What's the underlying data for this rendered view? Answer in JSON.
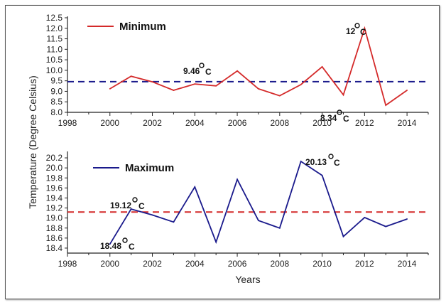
{
  "figure": {
    "ylabel": "Temperature (Degree Celsius)",
    "xlabel": "Years"
  },
  "chart_data": [
    {
      "type": "line",
      "legend": "Minimum",
      "line_color": "#d42a2a",
      "ref_color": "#1a1a8c",
      "x": [
        2000,
        2001,
        2002,
        2003,
        2004,
        2005,
        2006,
        2007,
        2008,
        2009,
        2010,
        2011,
        2012,
        2013,
        2014
      ],
      "values": [
        9.12,
        9.72,
        9.45,
        9.05,
        9.35,
        9.26,
        9.97,
        9.12,
        8.79,
        9.32,
        10.17,
        8.83,
        12.0,
        8.34,
        9.05
      ],
      "reference_line": 9.46,
      "xlim": [
        1998,
        2015
      ],
      "ylim": [
        8.0,
        12.5
      ],
      "xticks": [
        "1998",
        "2000",
        "2002",
        "2004",
        "2006",
        "2008",
        "2010",
        "2012",
        "2014"
      ],
      "yticks": [
        "8.0",
        "8.5",
        "9.0",
        "9.5",
        "10.0",
        "10.5",
        "11.0",
        "11.5",
        "12.0",
        "12.5"
      ],
      "annotations": [
        {
          "value": "9.46",
          "unit": "C"
        },
        {
          "value": "12",
          "unit": "C"
        },
        {
          "value": "8.34",
          "unit": "C"
        }
      ]
    },
    {
      "type": "line",
      "legend": "Maximum",
      "line_color": "#1a1a8c",
      "ref_color": "#d42a2a",
      "x": [
        2000,
        2001,
        2002,
        2003,
        2004,
        2005,
        2006,
        2007,
        2008,
        2009,
        2010,
        2011,
        2012,
        2013,
        2014
      ],
      "values": [
        18.48,
        19.18,
        19.06,
        18.92,
        19.62,
        18.52,
        19.77,
        18.95,
        18.8,
        20.13,
        19.85,
        18.63,
        19.01,
        18.83,
        18.98
      ],
      "reference_line": 19.12,
      "xlim": [
        1998,
        2015
      ],
      "ylim": [
        18.3,
        20.3
      ],
      "xticks": [
        "1998",
        "2000",
        "2002",
        "2004",
        "2006",
        "2008",
        "2010",
        "2012",
        "2014"
      ],
      "yticks": [
        "18.4",
        "18.6",
        "18.8",
        "19.0",
        "19.2",
        "19.4",
        "19.6",
        "19.8",
        "20.0",
        "20.2"
      ],
      "annotations": [
        {
          "value": "20.13",
          "unit": "C"
        },
        {
          "value": "19.12",
          "unit": "C"
        },
        {
          "value": "18.48",
          "unit": "C"
        }
      ]
    }
  ]
}
